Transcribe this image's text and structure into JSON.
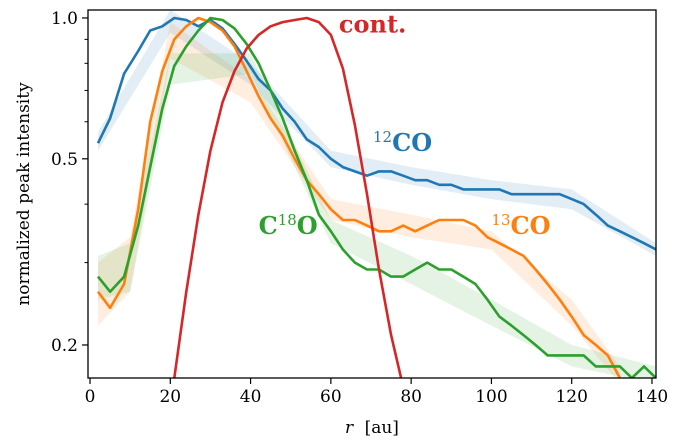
{
  "chart_data": {
    "type": "line",
    "xlabel_var": "r",
    "xlabel_unit": "[au]",
    "ylabel": "normalized peak intensity",
    "xlim": [
      -0.5,
      141
    ],
    "ylim": [
      0.17,
      1.04
    ],
    "yscale": "log",
    "x_ticks": [
      0,
      20,
      40,
      60,
      80,
      100,
      120,
      140
    ],
    "x_tick_labels": [
      "0",
      "20",
      "40",
      "60",
      "80",
      "100",
      "120",
      "140"
    ],
    "y_ticks": [
      0.2,
      0.5,
      1.0
    ],
    "y_tick_labels": [
      "0.2",
      "0.5",
      "1.0"
    ],
    "y_minor_ticks": [
      0.3,
      0.4,
      0.6,
      0.7,
      0.8,
      0.9
    ],
    "grid": false,
    "legend": "none (inline labels)",
    "series": [
      {
        "id": "12co",
        "label_sup": "12",
        "label_main": "CO",
        "color": "#1f77b4",
        "x": [
          2,
          5,
          8.5,
          12,
          15,
          18,
          21,
          24,
          27,
          30,
          33,
          36,
          39,
          42,
          45,
          48,
          51,
          54,
          57,
          60,
          63,
          66,
          69,
          72,
          75,
          78,
          81,
          84,
          87,
          90,
          93,
          96,
          99,
          102,
          105,
          108,
          111,
          114,
          117,
          120,
          123,
          126,
          129,
          132,
          135,
          138,
          141
        ],
        "y": [
          0.54,
          0.61,
          0.76,
          0.85,
          0.94,
          0.96,
          1.0,
          0.99,
          0.96,
          0.99,
          0.95,
          0.88,
          0.81,
          0.74,
          0.7,
          0.64,
          0.6,
          0.55,
          0.53,
          0.5,
          0.48,
          0.47,
          0.46,
          0.47,
          0.47,
          0.46,
          0.45,
          0.45,
          0.44,
          0.44,
          0.43,
          0.43,
          0.43,
          0.43,
          0.42,
          0.42,
          0.42,
          0.42,
          0.42,
          0.41,
          0.4,
          0.38,
          0.36,
          0.35,
          0.34,
          0.33,
          0.32
        ],
        "band_x": [
          2,
          20,
          40,
          60,
          80,
          100,
          120,
          141
        ],
        "band_lo": [
          0.52,
          0.93,
          0.72,
          0.48,
          0.44,
          0.41,
          0.39,
          0.31
        ],
        "band_hi": [
          0.57,
          1.04,
          0.8,
          0.52,
          0.48,
          0.45,
          0.43,
          0.33
        ]
      },
      {
        "id": "13co",
        "label_sup": "13",
        "label_main": "CO",
        "color": "#ff7f0e",
        "x": [
          2,
          5,
          8.5,
          12,
          15,
          18,
          21,
          24,
          27,
          30,
          33,
          36,
          39,
          42,
          45,
          48,
          51,
          54,
          57,
          60,
          63,
          66,
          69,
          72,
          75,
          78,
          81,
          84,
          87,
          90,
          93,
          96,
          99,
          102,
          105,
          108,
          111,
          114,
          117,
          120,
          123,
          126,
          129,
          132
        ],
        "y": [
          0.26,
          0.24,
          0.27,
          0.39,
          0.6,
          0.77,
          0.9,
          0.96,
          1.0,
          0.98,
          0.94,
          0.87,
          0.77,
          0.68,
          0.61,
          0.56,
          0.5,
          0.45,
          0.42,
          0.39,
          0.37,
          0.37,
          0.36,
          0.35,
          0.35,
          0.36,
          0.35,
          0.36,
          0.37,
          0.37,
          0.37,
          0.36,
          0.34,
          0.33,
          0.32,
          0.31,
          0.29,
          0.27,
          0.25,
          0.23,
          0.21,
          0.2,
          0.19,
          0.17
        ],
        "band_x": [
          2,
          10,
          20,
          40,
          60,
          80,
          100,
          120,
          132
        ],
        "band_lo": [
          0.22,
          0.26,
          0.82,
          0.66,
          0.37,
          0.34,
          0.32,
          0.22,
          0.165
        ],
        "band_hi": [
          0.3,
          0.34,
          0.98,
          0.74,
          0.41,
          0.38,
          0.35,
          0.25,
          0.18
        ]
      },
      {
        "id": "c18o",
        "label_pre": "C",
        "label_sup": "18",
        "label_main": "O",
        "color": "#2ca02c",
        "x": [
          2,
          5,
          8.5,
          12,
          15,
          18,
          21,
          24,
          27,
          30,
          33,
          36,
          39,
          42,
          45,
          48,
          51,
          54,
          57,
          60,
          63,
          66,
          69,
          72,
          75,
          78,
          81,
          84,
          87,
          90,
          93,
          96,
          99,
          102,
          105,
          108,
          111,
          114,
          117,
          120,
          123,
          126,
          129,
          132,
          135,
          138,
          141
        ],
        "y": [
          0.28,
          0.26,
          0.28,
          0.36,
          0.48,
          0.64,
          0.79,
          0.87,
          0.94,
          1.0,
          0.99,
          0.95,
          0.88,
          0.8,
          0.7,
          0.61,
          0.52,
          0.45,
          0.38,
          0.35,
          0.32,
          0.3,
          0.29,
          0.29,
          0.28,
          0.28,
          0.29,
          0.3,
          0.29,
          0.29,
          0.28,
          0.27,
          0.25,
          0.23,
          0.22,
          0.21,
          0.2,
          0.19,
          0.19,
          0.19,
          0.19,
          0.18,
          0.18,
          0.18,
          0.17,
          0.18,
          0.17
        ],
        "band_x": [
          2,
          10,
          20,
          40,
          60,
          80,
          100,
          120,
          141
        ],
        "band_lo": [
          0.25,
          0.26,
          0.72,
          0.76,
          0.33,
          0.27,
          0.22,
          0.18,
          0.165
        ],
        "band_hi": [
          0.31,
          0.33,
          0.84,
          0.84,
          0.37,
          0.31,
          0.25,
          0.2,
          0.18
        ]
      },
      {
        "id": "cont",
        "label_main": "cont.",
        "color": "#d62728",
        "x": [
          21,
          24,
          27,
          30,
          33,
          36,
          39,
          42,
          45,
          48,
          51,
          54,
          57,
          60,
          63,
          66,
          69,
          72,
          75,
          77.5
        ],
        "y": [
          0.17,
          0.26,
          0.38,
          0.52,
          0.66,
          0.77,
          0.86,
          0.92,
          0.96,
          0.98,
          0.99,
          1.0,
          0.98,
          0.92,
          0.78,
          0.59,
          0.42,
          0.29,
          0.21,
          0.17
        ]
      }
    ],
    "annotations": [
      {
        "series": "cont",
        "x": 62,
        "y": 0.93
      },
      {
        "series": "12co",
        "x": 70.5,
        "y": 0.52
      },
      {
        "series": "13co",
        "x": 100,
        "y": 0.345
      },
      {
        "series": "c18o",
        "x": 42,
        "y": 0.345
      }
    ]
  }
}
